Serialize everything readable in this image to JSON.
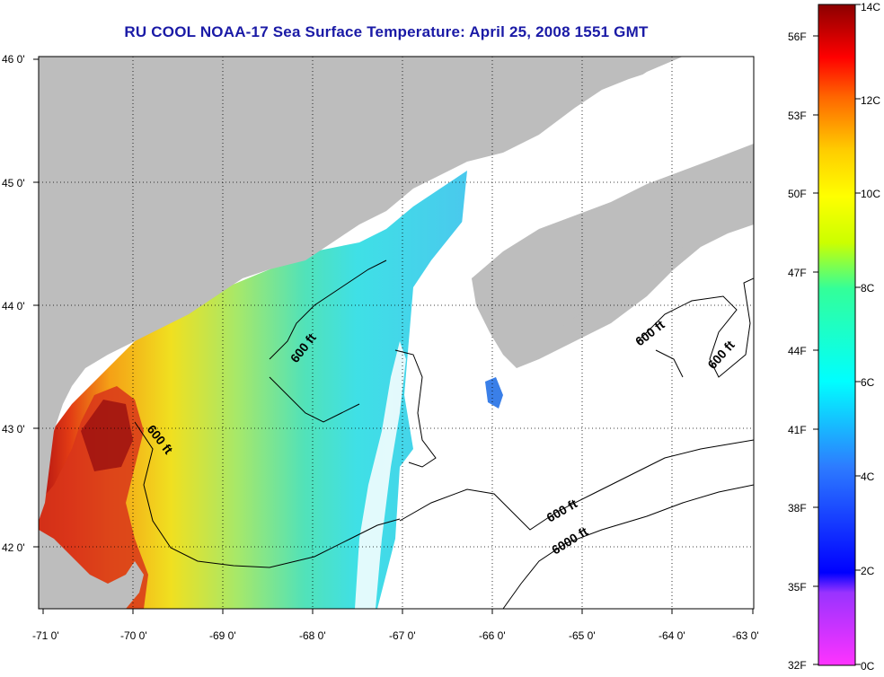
{
  "title": "RU COOL  NOAA-17  Sea Surface Temperature:  April 25, 2008 1551 GMT",
  "axes": {
    "lon_ticks": [
      "-71 0'",
      "-70 0'",
      "-69 0'",
      "-68 0'",
      "-67 0'",
      "-66 0'",
      "-65 0'",
      "-64 0'",
      "-63 0'"
    ],
    "lat_ticks": [
      "46 0'",
      "45 0'",
      "44 0'",
      "43 0'",
      "42 0'"
    ]
  },
  "contour_labels": [
    "600 ft",
    "600 ft",
    "600 ft",
    "600 ft",
    "600 ft",
    "6000 ft"
  ],
  "colorbar": {
    "celsius_labels": [
      "14C",
      "12C",
      "10C",
      "8C",
      "6C",
      "4C",
      "2C",
      "0C"
    ],
    "fahrenheit_labels": [
      "56F",
      "53F",
      "50F",
      "47F",
      "44F",
      "41F",
      "38F",
      "35F",
      "32F"
    ],
    "colors": {
      "land": "#bdbdbd",
      "water_nodata": "#ffffff"
    }
  },
  "chart_data": {
    "type": "heatmap",
    "title": "RU COOL  NOAA-17  Sea Surface Temperature:  April 25, 2008 1551 GMT",
    "x_range": [
      -71,
      -63
    ],
    "y_range": [
      41.5,
      46
    ],
    "colorscale_range_celsius": [
      0,
      14
    ]
  }
}
